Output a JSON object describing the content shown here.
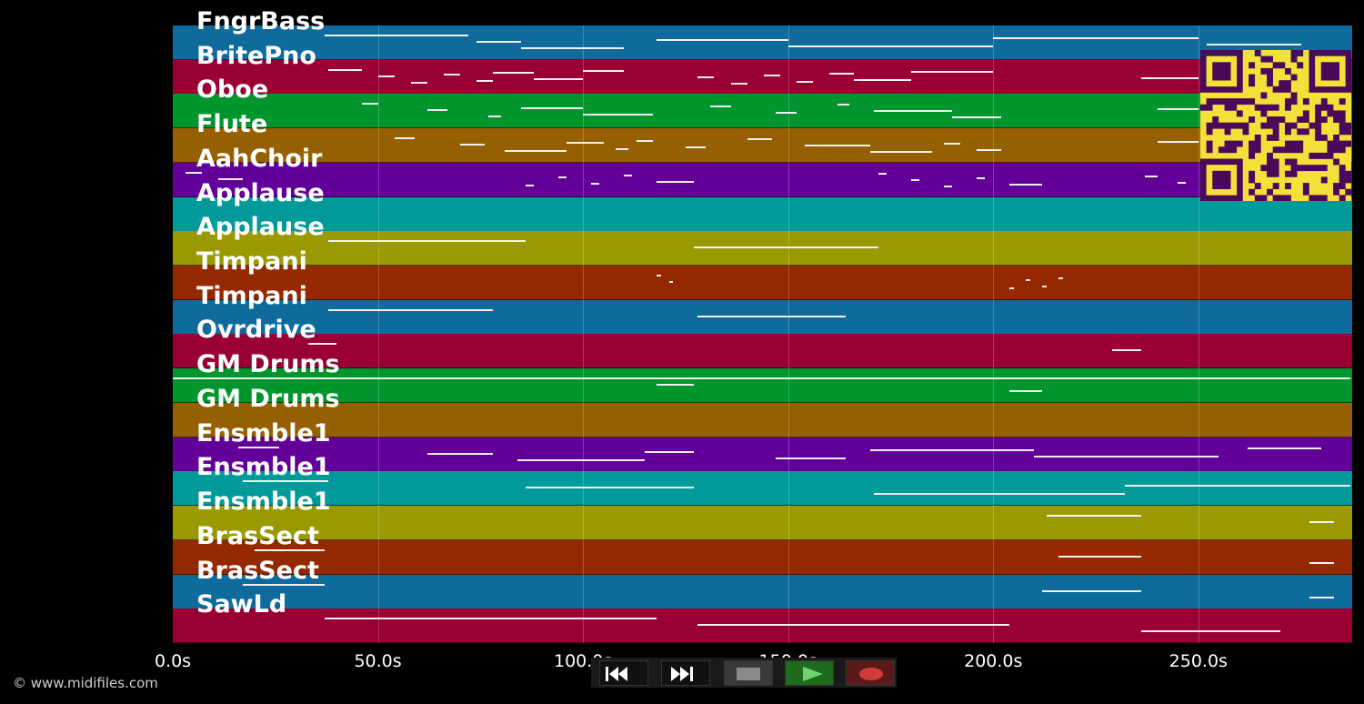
{
  "tracks": [
    {
      "name": "FngrBass",
      "color": "#0e6b9c"
    },
    {
      "name": "BritePno",
      "color": "#9a0033"
    },
    {
      "name": "Oboe",
      "color": "#00952d"
    },
    {
      "name": "Flute",
      "color": "#966000"
    },
    {
      "name": "AahChoir",
      "color": "#63009a"
    },
    {
      "name": "Applause",
      "color": "#009a9a"
    },
    {
      "name": "Applause",
      "color": "#9a9a00"
    },
    {
      "name": "Timpani",
      "color": "#962800"
    },
    {
      "name": "Timpani",
      "color": "#0e6b9c"
    },
    {
      "name": "Ovrdrive",
      "color": "#9a0033"
    },
    {
      "name": "GM Drums",
      "color": "#00952d"
    },
    {
      "name": "GM Drums",
      "color": "#966000"
    },
    {
      "name": "Ensmble1",
      "color": "#63009a"
    },
    {
      "name": "Ensmble1",
      "color": "#009a9a"
    },
    {
      "name": "Ensmble1",
      "color": "#9a9a00"
    },
    {
      "name": "BrasSect",
      "color": "#962800"
    },
    {
      "name": "BrasSect",
      "color": "#0e6b9c"
    },
    {
      "name": "SawLd",
      "color": "#9a0033"
    }
  ],
  "time_axis": {
    "unit": "s",
    "max_seconds": 287.5,
    "ticks": [
      {
        "value": 0,
        "label": "0.0s"
      },
      {
        "value": 50,
        "label": "50.0s"
      },
      {
        "value": 100,
        "label": "100.0s"
      },
      {
        "value": 150,
        "label": "150.0s"
      },
      {
        "value": 200,
        "label": "200.0s"
      },
      {
        "value": 250,
        "label": "250.0s"
      }
    ]
  },
  "notes_by_track": [
    [
      [
        37,
        72
      ],
      [
        74,
        85
      ],
      [
        85,
        110
      ],
      [
        118,
        150
      ],
      [
        150,
        200
      ],
      [
        200,
        250
      ],
      [
        252,
        275
      ]
    ],
    [
      [
        38,
        46
      ],
      [
        50,
        54
      ],
      [
        58,
        62
      ],
      [
        66,
        70
      ],
      [
        74,
        78
      ],
      [
        78,
        88
      ],
      [
        88,
        100
      ],
      [
        100,
        110
      ],
      [
        128,
        132
      ],
      [
        136,
        140
      ],
      [
        144,
        148
      ],
      [
        152,
        156
      ],
      [
        160,
        166
      ],
      [
        166,
        180
      ],
      [
        180,
        200
      ],
      [
        236,
        250
      ]
    ],
    [
      [
        46,
        50
      ],
      [
        62,
        67
      ],
      [
        77,
        80
      ],
      [
        85,
        100
      ],
      [
        100,
        117
      ],
      [
        131,
        136
      ],
      [
        147,
        152
      ],
      [
        162,
        165
      ],
      [
        171,
        190
      ],
      [
        190,
        202
      ],
      [
        240,
        250
      ]
    ],
    [
      [
        54,
        59
      ],
      [
        70,
        76
      ],
      [
        81,
        96
      ],
      [
        96,
        105
      ],
      [
        108,
        111
      ],
      [
        113,
        117
      ],
      [
        125,
        130
      ],
      [
        140,
        146
      ],
      [
        154,
        170
      ],
      [
        170,
        185
      ],
      [
        188,
        192
      ],
      [
        196,
        202
      ],
      [
        240,
        250
      ]
    ],
    [
      [
        3,
        7
      ],
      [
        11,
        17
      ],
      [
        86,
        88
      ],
      [
        94,
        96
      ],
      [
        102,
        104
      ],
      [
        110,
        112
      ],
      [
        118,
        127
      ],
      [
        172,
        174
      ],
      [
        180,
        182
      ],
      [
        188,
        190
      ],
      [
        196,
        198
      ],
      [
        204,
        212
      ],
      [
        237,
        240
      ],
      [
        245,
        247
      ]
    ],
    [],
    [
      [
        38,
        86
      ],
      [
        127,
        172
      ]
    ],
    [
      [
        118,
        119
      ],
      [
        121,
        122
      ],
      [
        204,
        205
      ],
      [
        208,
        209
      ],
      [
        212,
        213
      ],
      [
        216,
        217
      ]
    ],
    [
      [
        38,
        78
      ],
      [
        128,
        164
      ]
    ],
    [
      [
        33,
        40
      ],
      [
        229,
        236
      ]
    ],
    [
      [
        0,
        287
      ],
      [
        118,
        127
      ],
      [
        204,
        212
      ]
    ],
    [],
    [
      [
        16,
        26
      ],
      [
        62,
        78
      ],
      [
        84,
        115
      ],
      [
        115,
        127
      ],
      [
        147,
        164
      ],
      [
        170,
        210
      ],
      [
        210,
        255
      ],
      [
        262,
        280
      ]
    ],
    [
      [
        17,
        38
      ],
      [
        86,
        127
      ],
      [
        171,
        232
      ],
      [
        232,
        287
      ]
    ],
    [
      [
        213,
        236
      ],
      [
        277,
        283
      ]
    ],
    [
      [
        20,
        37
      ],
      [
        216,
        236
      ],
      [
        277,
        283
      ]
    ],
    [
      [
        17,
        37
      ],
      [
        212,
        236
      ],
      [
        277,
        283
      ]
    ],
    [
      [
        37,
        118
      ],
      [
        128,
        204
      ],
      [
        236,
        270
      ]
    ]
  ],
  "controls": [
    {
      "name": "rewind-button",
      "icon": "rewind-icon",
      "bg": "#111111"
    },
    {
      "name": "fast-forward-button",
      "icon": "fast-forward-icon",
      "bg": "#111111"
    },
    {
      "name": "stop-button",
      "icon": "stop-icon",
      "bg": "#3a3a3a"
    },
    {
      "name": "play-button",
      "icon": "play-icon",
      "bg": "#1e6b1e"
    },
    {
      "name": "record-button",
      "icon": "record-icon",
      "bg": "#5a1a1a"
    }
  ],
  "qr_colors": {
    "fg": "#4a0a5a",
    "bg": "#f5e03a"
  },
  "copyright": "© www.midifiles.com"
}
